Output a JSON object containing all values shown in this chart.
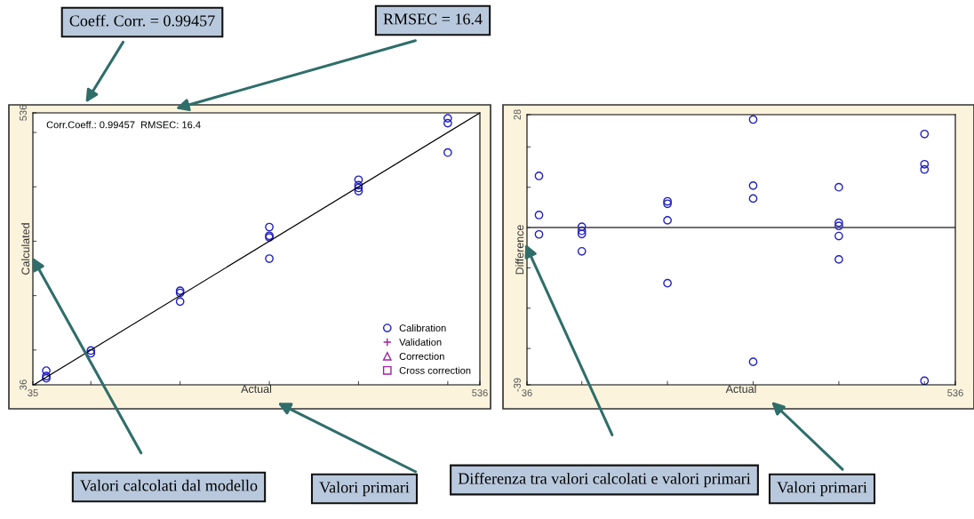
{
  "chart_data": [
    {
      "type": "scatter",
      "xlabel": "Actual",
      "ylabel": "Calculated",
      "xlim": [
        35,
        536
      ],
      "ylim": [
        36,
        536
      ],
      "xticks": [
        35,
        {
          "value": 100,
          "label": null
        },
        {
          "value": 200,
          "label": null
        },
        {
          "value": 300,
          "label": null
        },
        {
          "value": 400,
          "label": null
        },
        {
          "value": 500,
          "label": null
        },
        536
      ],
      "yticks": [
        36,
        {
          "value": 100,
          "label": null
        },
        {
          "value": 200,
          "label": null
        },
        {
          "value": 300,
          "label": null
        },
        {
          "value": 400,
          "label": null
        },
        {
          "value": 500,
          "label": null
        },
        536
      ],
      "grid": false,
      "legend": "bottom right",
      "series": [
        {
          "name": "Calibration",
          "color": "#2020c0",
          "marker": "circle",
          "x": [
            50,
            50,
            50,
            100,
            100,
            200,
            200,
            200,
            300,
            300,
            300,
            300,
            400,
            400,
            400,
            400,
            500,
            500,
            500
          ],
          "values": [
            62,
            52,
            48,
            99,
            94,
            209,
            205,
            189,
            326,
            310,
            307,
            268,
            413,
            403,
            398,
            392,
            526,
            517,
            463
          ]
        },
        {
          "name": "Validation",
          "color": "#a020a0",
          "marker": "cross"
        },
        {
          "name": "Correction",
          "color": "#a020a0",
          "marker": "triangle"
        },
        {
          "name": "Cross correction",
          "color": "#a020a0",
          "marker": "square"
        },
        {
          "type": "line",
          "color": "#000000",
          "marker": "none",
          "x": [
            36,
            536
          ],
          "values": [
            36,
            536
          ]
        }
      ],
      "annotations": [
        "Corr.Coeff.: 0.99457  RMSEC: 16.4",
        "Coeff. Corr. = 0.99457",
        "RMSEC = 16.4",
        "Valori calcolati dal modello",
        "Valori primari"
      ]
    },
    {
      "type": "scatter",
      "xlabel": "Actual",
      "ylabel": "Difference",
      "xlim": [
        36,
        536
      ],
      "ylim": [
        -39,
        28
      ],
      "xticks": [
        36,
        {
          "value": 100,
          "label": null
        },
        {
          "value": 200,
          "label": null
        },
        {
          "value": 300,
          "label": null
        },
        {
          "value": 400,
          "label": null
        },
        {
          "value": 500,
          "label": null
        },
        536
      ],
      "yticks": [
        -39,
        {
          "value": -30,
          "label": null
        },
        {
          "value": -20,
          "label": null
        },
        {
          "value": -10,
          "label": null
        },
        {
          "value": 0,
          "label": null
        },
        {
          "value": 10,
          "label": null
        },
        {
          "value": 20,
          "label": null
        },
        28
      ],
      "grid": false,
      "series": [
        {
          "color": "#2020c0",
          "marker": "circle",
          "x": [
            50,
            50,
            50,
            100,
            100,
            100,
            100,
            200,
            200,
            200,
            200,
            300,
            300,
            300,
            300,
            400,
            400,
            400,
            400,
            400,
            500,
            500,
            500,
            500
          ],
          "values": [
            12.8,
            3.1,
            -1.7,
            0.2,
            -0.8,
            -1.6,
            -5.9,
            6.5,
            5.9,
            1.8,
            -13.8,
            26.8,
            10.4,
            7.2,
            -33.3,
            10,
            1.2,
            0.4,
            -2.1,
            -7.9,
            23.2,
            15.7,
            14.4,
            -38
          ]
        }
      ],
      "ref_lines": [
        {
          "axis": "y",
          "value": 0,
          "color": "#404040"
        }
      ],
      "annotations": [
        "Differenza tra valori calcolati e valori primari",
        "Valori primari"
      ]
    }
  ]
}
